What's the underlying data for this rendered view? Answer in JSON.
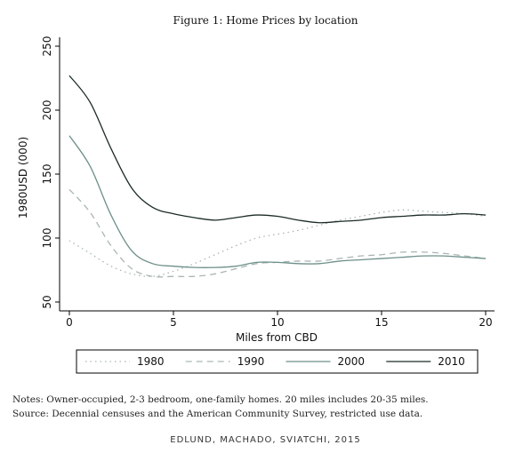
{
  "figure_title": "Figure 1: Home Prices by location",
  "notes": "Notes: Owner-occupied, 2-3 bedroom, one-family homes. 20 miles includes 20-35 miles.",
  "source": "Source: Decennial censuses and the American Community Survey, restricted use data.",
  "credit": "EDLUND, MACHADO, SVIATCHI, 2015",
  "chart_data": {
    "type": "line",
    "title": "Figure 1: Home Prices by location",
    "xlabel": "Miles from CBD",
    "ylabel": "1980USD (000)",
    "xlim": [
      0,
      20
    ],
    "ylim": [
      50,
      250
    ],
    "xticks": [
      0,
      5,
      10,
      15,
      20
    ],
    "yticks": [
      50,
      100,
      150,
      200,
      250
    ],
    "legend_position": "bottom",
    "x": [
      0,
      1,
      2,
      3,
      4,
      5,
      6,
      7,
      8,
      9,
      10,
      11,
      12,
      13,
      14,
      15,
      16,
      17,
      18,
      19,
      20
    ],
    "series": [
      {
        "name": "1980",
        "color": "#a9b6b3",
        "dash": "1.5,4",
        "values": [
          98,
          88,
          78,
          72,
          70,
          74,
          80,
          87,
          94,
          100,
          103,
          106,
          110,
          114,
          117,
          120,
          122,
          121,
          120,
          119,
          117
        ]
      },
      {
        "name": "1990",
        "color": "#a9b6b3",
        "dash": "7,5",
        "values": [
          138,
          120,
          94,
          76,
          70,
          70,
          70,
          72,
          76,
          80,
          81,
          82,
          82,
          84,
          86,
          87,
          89,
          89,
          88,
          86,
          84
        ]
      },
      {
        "name": "2000",
        "color": "#6d8f8a",
        "dash": "",
        "values": [
          180,
          156,
          118,
          90,
          80,
          78,
          77,
          77,
          78,
          81,
          81,
          80,
          80,
          82,
          83,
          84,
          85,
          86,
          86,
          85,
          84
        ]
      },
      {
        "name": "2010",
        "color": "#1b2b28",
        "dash": "",
        "values": [
          227,
          206,
          170,
          139,
          124,
          119,
          116,
          114,
          116,
          118,
          117,
          114,
          112,
          113,
          114,
          116,
          117,
          118,
          118,
          119,
          118
        ]
      }
    ]
  }
}
